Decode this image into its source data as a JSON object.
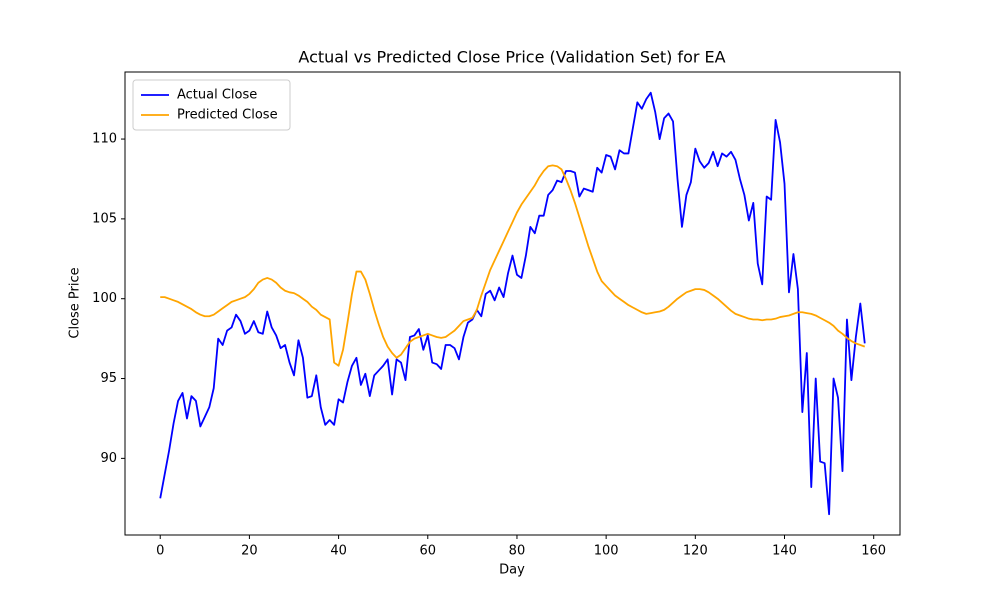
{
  "chart_data": {
    "type": "line",
    "title": "Actual vs Predicted Close Price (Validation Set) for EA",
    "x_label": "Day",
    "y_label": "Close Price",
    "x": [
      0,
      1,
      2,
      3,
      4,
      5,
      6,
      7,
      8,
      9,
      10,
      11,
      12,
      13,
      14,
      15,
      16,
      17,
      18,
      19,
      20,
      21,
      22,
      23,
      24,
      25,
      26,
      27,
      28,
      29,
      30,
      31,
      32,
      33,
      34,
      35,
      36,
      37,
      38,
      39,
      40,
      41,
      42,
      43,
      44,
      45,
      46,
      47,
      48,
      49,
      50,
      51,
      52,
      53,
      54,
      55,
      56,
      57,
      58,
      59,
      60,
      61,
      62,
      63,
      64,
      65,
      66,
      67,
      68,
      69,
      70,
      71,
      72,
      73,
      74,
      75,
      76,
      77,
      78,
      79,
      80,
      81,
      82,
      83,
      84,
      85,
      86,
      87,
      88,
      89,
      90,
      91,
      92,
      93,
      94,
      95,
      96,
      97,
      98,
      99,
      100,
      101,
      102,
      103,
      104,
      105,
      106,
      107,
      108,
      109,
      110,
      111,
      112,
      113,
      114,
      115,
      116,
      117,
      118,
      119,
      120,
      121,
      122,
      123,
      124,
      125,
      126,
      127,
      128,
      129,
      130,
      131,
      132,
      133,
      134,
      135,
      136,
      137,
      138,
      139,
      140,
      141,
      142,
      143,
      144,
      145,
      146,
      147,
      148,
      149,
      150,
      151,
      152,
      153,
      154,
      155,
      156,
      157,
      158
    ],
    "series": [
      {
        "name": "Actual Close",
        "color": "#0000ff",
        "values": [
          87.5,
          89.0,
          90.5,
          92.2,
          93.6,
          94.1,
          92.5,
          93.9,
          93.6,
          92.0,
          92.6,
          93.2,
          94.4,
          97.5,
          97.1,
          98.0,
          98.2,
          99.0,
          98.6,
          97.8,
          98.0,
          98.6,
          97.9,
          97.8,
          99.2,
          98.2,
          97.7,
          96.9,
          97.1,
          96.0,
          95.2,
          97.4,
          96.3,
          93.8,
          93.9,
          95.2,
          93.2,
          92.1,
          92.4,
          92.1,
          93.7,
          93.5,
          94.8,
          95.8,
          96.3,
          94.6,
          95.3,
          93.9,
          95.2,
          95.5,
          95.8,
          96.2,
          94.0,
          96.2,
          96.0,
          94.9,
          97.6,
          97.7,
          98.1,
          96.8,
          97.7,
          96.0,
          95.9,
          95.6,
          97.1,
          97.1,
          96.9,
          96.2,
          97.6,
          98.5,
          98.7,
          99.3,
          98.9,
          100.3,
          100.5,
          99.9,
          100.7,
          100.1,
          101.6,
          102.7,
          101.5,
          101.3,
          102.7,
          104.5,
          104.1,
          105.2,
          105.2,
          106.5,
          106.8,
          107.4,
          107.3,
          108.0,
          108.0,
          107.9,
          106.4,
          106.9,
          106.8,
          106.7,
          108.2,
          107.9,
          109.0,
          108.9,
          108.1,
          109.3,
          109.1,
          109.1,
          110.7,
          112.3,
          111.9,
          112.5,
          112.9,
          111.7,
          110.0,
          111.3,
          111.6,
          111.1,
          107.5,
          104.5,
          106.5,
          107.3,
          109.4,
          108.6,
          108.2,
          108.5,
          109.2,
          108.3,
          109.1,
          108.9,
          109.2,
          108.7,
          107.5,
          106.5,
          104.9,
          106.0,
          102.2,
          100.9,
          106.4,
          106.2,
          111.2,
          109.8,
          107.2,
          100.4,
          102.8,
          100.6,
          92.9,
          96.6,
          88.2,
          95.0,
          89.8,
          89.7,
          86.5,
          95.0,
          93.8,
          89.2,
          98.7,
          94.9,
          97.6,
          99.7,
          97.2
        ]
      },
      {
        "name": "Predicted Close",
        "color": "#ffa500",
        "values": [
          100.1,
          100.1,
          100.0,
          99.9,
          99.8,
          99.65,
          99.5,
          99.35,
          99.15,
          99.0,
          98.9,
          98.9,
          99.0,
          99.2,
          99.4,
          99.6,
          99.8,
          99.9,
          100.0,
          100.1,
          100.3,
          100.6,
          101.0,
          101.2,
          101.3,
          101.2,
          101.0,
          100.7,
          100.5,
          100.4,
          100.35,
          100.2,
          100.0,
          99.8,
          99.5,
          99.3,
          99.0,
          98.85,
          98.7,
          96.0,
          95.8,
          96.8,
          98.5,
          100.3,
          101.7,
          101.7,
          101.2,
          100.3,
          99.3,
          98.4,
          97.6,
          97.0,
          96.6,
          96.3,
          96.5,
          96.9,
          97.3,
          97.5,
          97.6,
          97.7,
          97.8,
          97.7,
          97.6,
          97.55,
          97.6,
          97.8,
          98.0,
          98.3,
          98.6,
          98.7,
          98.8,
          99.3,
          100.2,
          101.0,
          101.8,
          102.4,
          103.0,
          103.6,
          104.2,
          104.8,
          105.4,
          105.9,
          106.3,
          106.7,
          107.1,
          107.6,
          108.0,
          108.3,
          108.35,
          108.3,
          108.1,
          107.5,
          106.8,
          106.0,
          105.1,
          104.2,
          103.3,
          102.5,
          101.7,
          101.1,
          100.8,
          100.5,
          100.2,
          100.0,
          99.8,
          99.6,
          99.45,
          99.3,
          99.15,
          99.05,
          99.1,
          99.15,
          99.2,
          99.3,
          99.5,
          99.75,
          100.0,
          100.2,
          100.4,
          100.5,
          100.6,
          100.6,
          100.55,
          100.4,
          100.2,
          100.0,
          99.75,
          99.5,
          99.25,
          99.05,
          98.95,
          98.85,
          98.75,
          98.7,
          98.7,
          98.65,
          98.7,
          98.7,
          98.75,
          98.85,
          98.9,
          98.95,
          99.05,
          99.15,
          99.15,
          99.1,
          99.05,
          98.95,
          98.8,
          98.65,
          98.5,
          98.3,
          98.0,
          97.8,
          97.55,
          97.35,
          97.2,
          97.1,
          97.0
        ]
      }
    ],
    "xlim": [
      -7.9,
      165.9
    ],
    "xticks": [
      0,
      20,
      40,
      60,
      80,
      100,
      120,
      140,
      160
    ],
    "ylim": [
      85.2,
      114.2
    ],
    "yticks": [
      90,
      95,
      100,
      105,
      110
    ],
    "legend": "upper left",
    "grid": false
  }
}
